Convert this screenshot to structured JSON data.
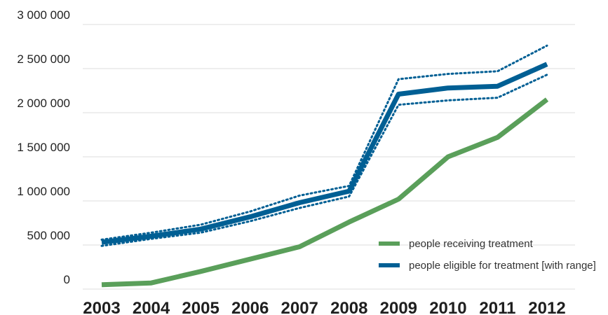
{
  "chart_data": {
    "type": "line",
    "title": "",
    "xlabel": "",
    "ylabel": "",
    "categories": [
      "2003",
      "2004",
      "2005",
      "2006",
      "2007",
      "2008",
      "2009",
      "2010",
      "2011",
      "2012"
    ],
    "ylim": [
      0,
      3000000
    ],
    "y_ticks": [
      0,
      500000,
      1000000,
      1500000,
      2000000,
      2500000,
      3000000
    ],
    "y_tick_labels": [
      "0",
      "500 000",
      "1 000 000",
      "1 500 000",
      "2 000 000",
      "2 500 000",
      "3 000 000"
    ],
    "grid": true,
    "legend_position": "bottom-right",
    "series": [
      {
        "name": "people receiving treatment",
        "color": "#5a9f5a",
        "values": [
          50000,
          70000,
          200000,
          340000,
          480000,
          760000,
          1020000,
          1500000,
          1720000,
          2150000
        ]
      },
      {
        "name": "people eligible for treatment [with range]",
        "color": "#005f94",
        "values": [
          530000,
          600000,
          680000,
          820000,
          980000,
          1110000,
          2210000,
          2280000,
          2300000,
          2550000
        ],
        "range_low": [
          490000,
          570000,
          640000,
          770000,
          920000,
          1050000,
          2090000,
          2140000,
          2170000,
          2430000
        ],
        "range_high": [
          560000,
          640000,
          730000,
          880000,
          1060000,
          1170000,
          2380000,
          2440000,
          2470000,
          2760000
        ]
      }
    ]
  },
  "legend": {
    "items": [
      {
        "label": "people receiving treatment",
        "color": "#5a9f5a"
      },
      {
        "label": "people eligible for treatment [with range]",
        "color": "#005f94"
      }
    ]
  }
}
